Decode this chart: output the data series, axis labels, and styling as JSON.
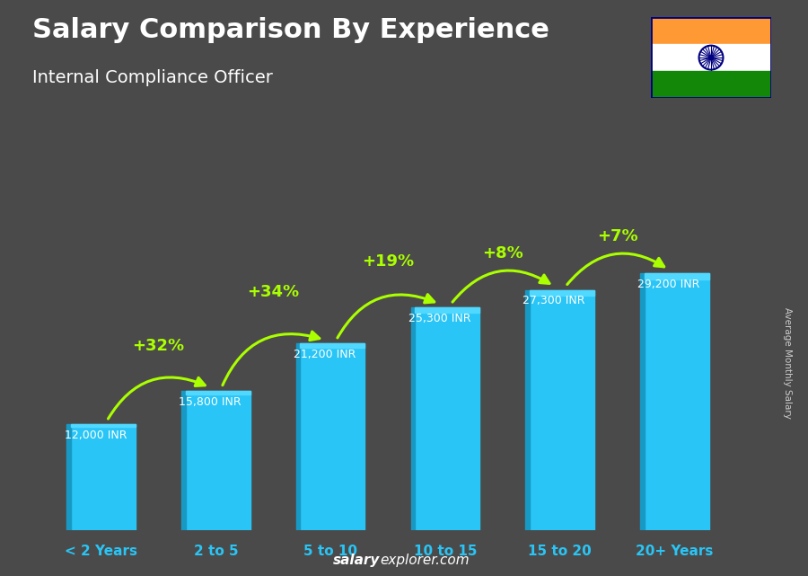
{
  "title": "Salary Comparison By Experience",
  "subtitle": "Internal Compliance Officer",
  "categories": [
    "< 2 Years",
    "2 to 5",
    "5 to 10",
    "10 to 15",
    "15 to 20",
    "20+ Years"
  ],
  "values": [
    12000,
    15800,
    21200,
    25300,
    27300,
    29200
  ],
  "labels": [
    "12,000 INR",
    "15,800 INR",
    "21,200 INR",
    "25,300 INR",
    "27,300 INR",
    "29,200 INR"
  ],
  "pct_changes": [
    "+32%",
    "+34%",
    "+19%",
    "+8%",
    "+7%"
  ],
  "bar_color": "#29c5f6",
  "bar_color_dark": "#1899c4",
  "bar_color_top": "#50d8ff",
  "pct_color": "#aaff00",
  "title_color": "#ffffff",
  "subtitle_color": "#ffffff",
  "label_color": "#ffffff",
  "xlabel_color": "#29c5f6",
  "ylabel_text": "Average Monthly Salary",
  "watermark_bold": "salary",
  "watermark_normal": "explorer.com",
  "bg_color": "#4a4a4a",
  "ylim": [
    0,
    38000
  ],
  "flag_saffron": "#FF9933",
  "flag_white": "#FFFFFF",
  "flag_green": "#138808",
  "flag_navy": "#000080"
}
